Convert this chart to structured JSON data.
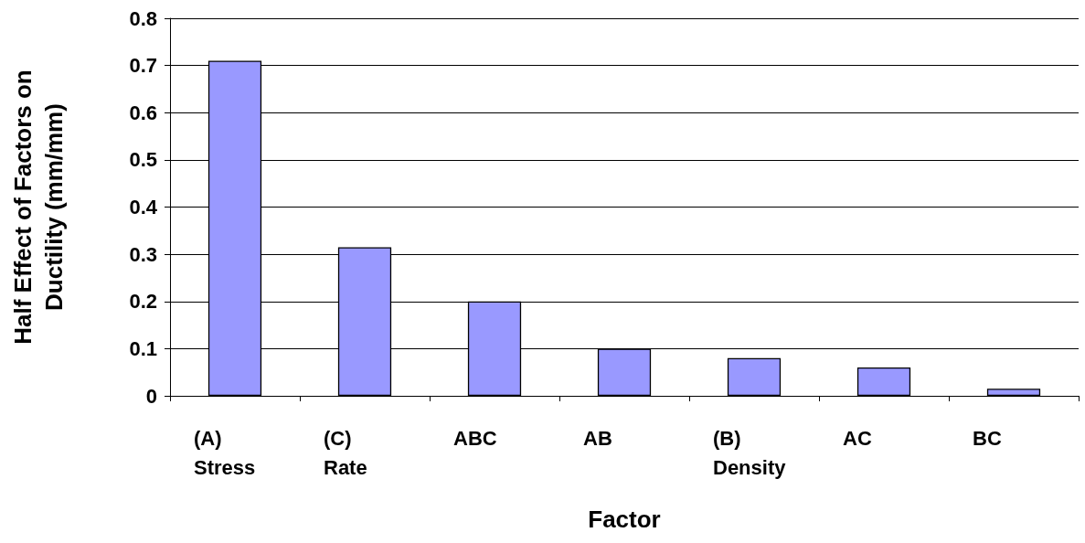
{
  "chart_data": {
    "type": "bar",
    "categories": [
      "(A)\nStress",
      "(C)\nRate",
      "ABC",
      "AB",
      "(B)\nDensity",
      "AC",
      "BC"
    ],
    "values": [
      0.71,
      0.315,
      0.2,
      0.1,
      0.08,
      0.06,
      0.015
    ],
    "color": "#9999ff",
    "xlabel": "Factor",
    "ylabel": "Half Effect of Factors on\nDuctility (mm/mm)",
    "ylim": [
      0,
      0.8
    ],
    "yticks": [
      0,
      0.1,
      0.2,
      0.3,
      0.4,
      0.5,
      0.6,
      0.7,
      0.8
    ],
    "grid": "y"
  }
}
